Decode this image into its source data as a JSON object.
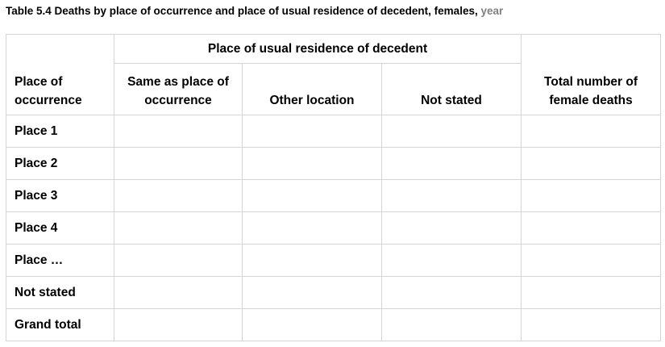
{
  "caption": {
    "main": "Table 5.4 Deaths by place of occurrence and place of usual residence of decedent, females, ",
    "year": "year"
  },
  "header": {
    "place_of_occurrence_line1": "Place of",
    "place_of_occurrence_line2": "occurrence",
    "usual_residence_group": "Place of usual residence of decedent",
    "same_line1": "Same as place of",
    "same_line2": "occurrence",
    "other_location": "Other location",
    "not_stated": "Not stated",
    "total_line1": "Total number of",
    "total_line2": "female deaths"
  },
  "rows": [
    {
      "label": "Place 1",
      "same": "",
      "other": "",
      "not_stated": "",
      "total": ""
    },
    {
      "label": "Place 2",
      "same": "",
      "other": "",
      "not_stated": "",
      "total": ""
    },
    {
      "label": "Place 3",
      "same": "",
      "other": "",
      "not_stated": "",
      "total": ""
    },
    {
      "label": "Place 4",
      "same": "",
      "other": "",
      "not_stated": "",
      "total": ""
    },
    {
      "label": "Place …",
      "same": "",
      "other": "",
      "not_stated": "",
      "total": ""
    },
    {
      "label": "Not stated",
      "same": "",
      "other": "",
      "not_stated": "",
      "total": ""
    },
    {
      "label": "Grand total",
      "same": "",
      "other": "",
      "not_stated": "",
      "total": ""
    }
  ],
  "colors": {
    "border": "#d4d4d4",
    "year_placeholder": "#808080",
    "text": "#000000"
  }
}
